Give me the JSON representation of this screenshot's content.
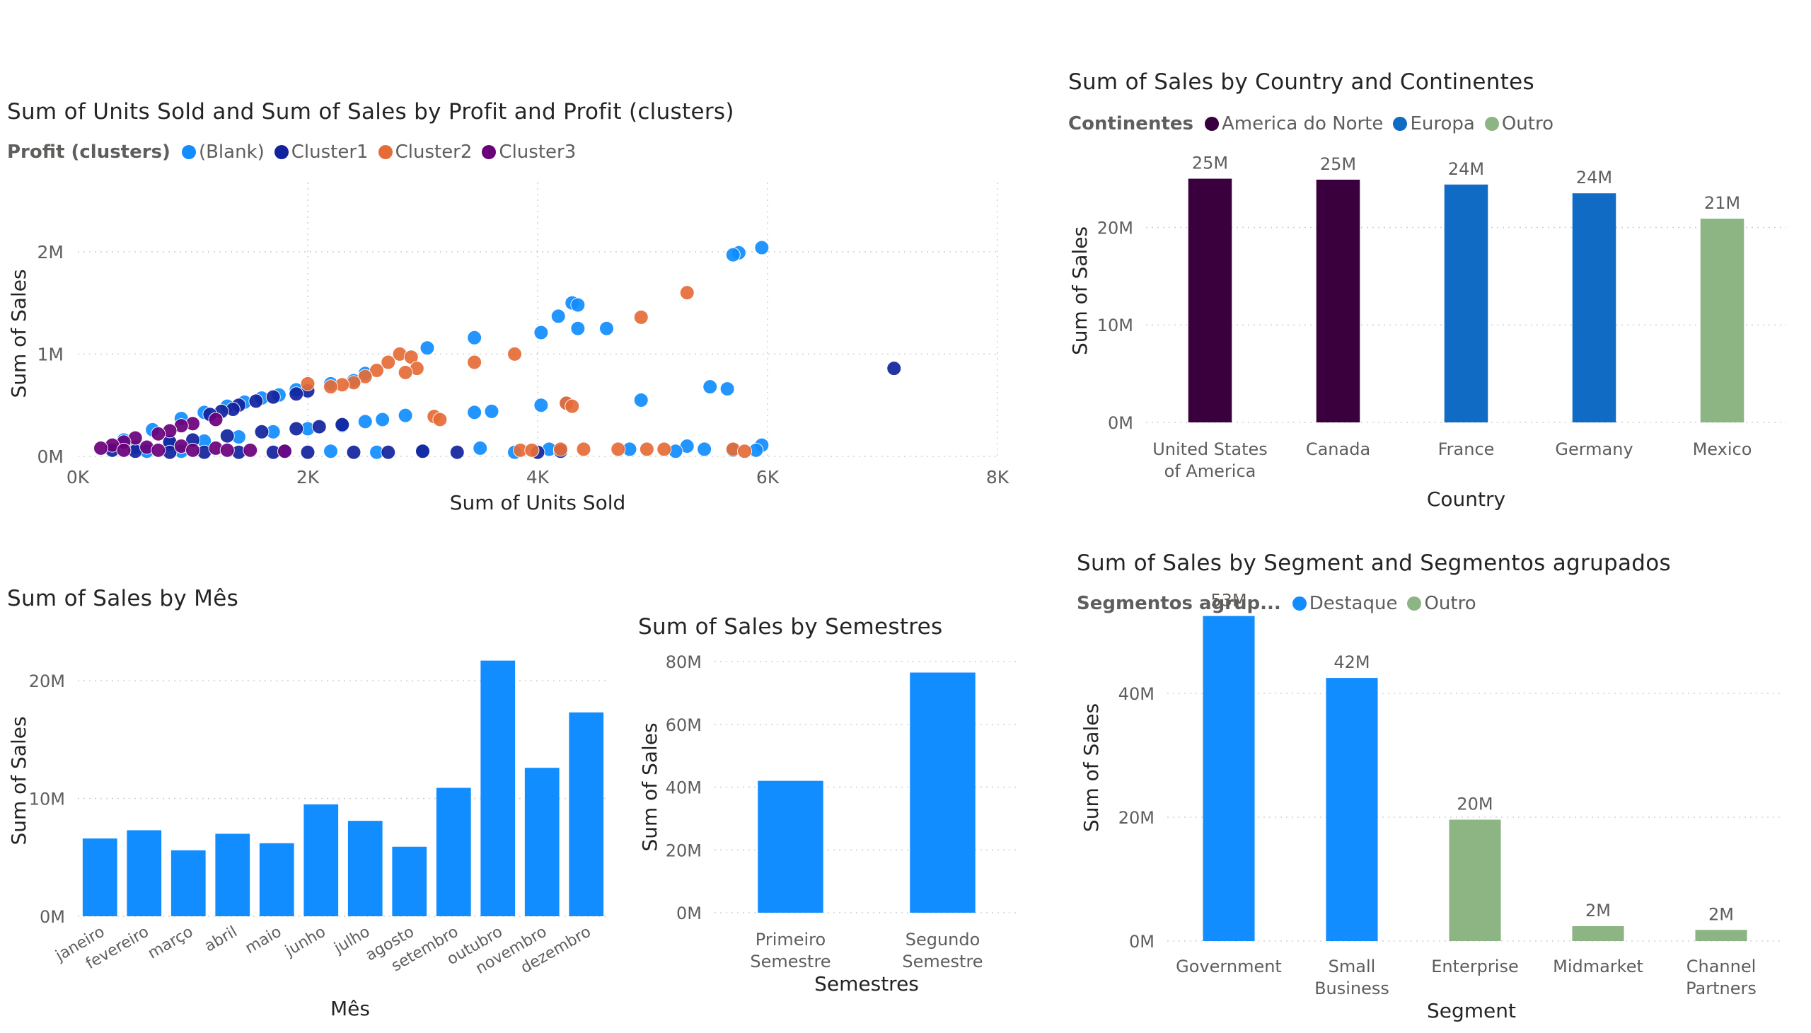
{
  "visuals": {
    "scatter": {
      "title": "Sum of Units Sold and Sum of Sales by Profit and Profit (clusters)",
      "legend_title": "Profit (clusters)",
      "legend": [
        {
          "label": "(Blank)",
          "color": "#118DFF"
        },
        {
          "label": "Cluster1",
          "color": "#12239E"
        },
        {
          "label": "Cluster2",
          "color": "#E66C37"
        },
        {
          "label": "Cluster3",
          "color": "#6B007B"
        }
      ]
    },
    "country": {
      "title": "Sum of Sales by Country and Continentes",
      "legend_title": "Continentes",
      "legend": [
        {
          "label": "America do Norte",
          "color": "#3A003E"
        },
        {
          "label": "Europa",
          "color": "#0F6BC4"
        },
        {
          "label": "Outro",
          "color": "#8DB584"
        }
      ]
    },
    "month": {
      "title": "Sum of Sales by Mês"
    },
    "semester": {
      "title": "Sum of Sales by Semestres"
    },
    "segment": {
      "title": "Sum of Sales by Segment and Segmentos agrupados",
      "legend_title": "Segmentos agrup...",
      "legend": [
        {
          "label": "Destaque",
          "color": "#118DFF"
        },
        {
          "label": "Outro",
          "color": "#8DB584"
        }
      ]
    }
  },
  "chart_data": [
    {
      "id": "scatter",
      "type": "scatter",
      "title": "Sum of Units Sold and Sum of Sales by Profit and Profit (clusters)",
      "xlabel": "Sum of Units Sold",
      "ylabel": "Sum of Sales",
      "xlim": [
        0,
        8000
      ],
      "ylim": [
        0,
        2400000
      ],
      "xticks": [
        0,
        2000,
        4000,
        6000,
        8000
      ],
      "xtick_labels": [
        "0K",
        "2K",
        "4K",
        "6K",
        "8K"
      ],
      "yticks": [
        0,
        1000000,
        2000000
      ],
      "ytick_labels": [
        "0M",
        "1M",
        "2M"
      ],
      "grid": true,
      "legend_position": "top-left",
      "series": [
        {
          "name": "(Blank)",
          "color": "#118DFF",
          "points": [
            [
              5950,
              2040000
            ],
            [
              5750,
              1990000
            ],
            [
              5700,
              1970000
            ],
            [
              4300,
              1500000
            ],
            [
              4350,
              1480000
            ],
            [
              4180,
              1370000
            ],
            [
              4030,
              1210000
            ],
            [
              3450,
              1160000
            ],
            [
              4350,
              1250000
            ],
            [
              4600,
              1250000
            ],
            [
              3040,
              1060000
            ],
            [
              5500,
              680000
            ],
            [
              5650,
              660000
            ],
            [
              4900,
              550000
            ],
            [
              3450,
              430000
            ],
            [
              3600,
              440000
            ],
            [
              4030,
              500000
            ],
            [
              4250,
              520000
            ],
            [
              2500,
              810000
            ],
            [
              2400,
              740000
            ],
            [
              2200,
              710000
            ],
            [
              1900,
              650000
            ],
            [
              1600,
              570000
            ],
            [
              1450,
              530000
            ],
            [
              1750,
              600000
            ],
            [
              1300,
              490000
            ],
            [
              1100,
              430000
            ],
            [
              900,
              370000
            ],
            [
              650,
              260000
            ],
            [
              400,
              160000
            ],
            [
              2850,
              400000
            ],
            [
              2650,
              360000
            ],
            [
              2500,
              340000
            ],
            [
              2300,
              300000
            ],
            [
              2000,
              270000
            ],
            [
              1700,
              240000
            ],
            [
              1400,
              190000
            ],
            [
              1100,
              150000
            ],
            [
              800,
              120000
            ],
            [
              500,
              90000
            ],
            [
              3500,
              80000
            ],
            [
              4100,
              70000
            ],
            [
              5300,
              100000
            ],
            [
              5950,
              110000
            ],
            [
              5450,
              70000
            ],
            [
              5700,
              60000
            ],
            [
              4800,
              70000
            ],
            [
              5900,
              60000
            ],
            [
              2200,
              50000
            ],
            [
              3000,
              50000
            ],
            [
              2600,
              40000
            ],
            [
              1800,
              50000
            ],
            [
              900,
              50000
            ],
            [
              600,
              50000
            ],
            [
              3800,
              40000
            ],
            [
              5200,
              50000
            ]
          ]
        },
        {
          "name": "Cluster1",
          "color": "#12239E",
          "points": [
            [
              7100,
              860000
            ],
            [
              2000,
              640000
            ],
            [
              1900,
              610000
            ],
            [
              1700,
              580000
            ],
            [
              1550,
              540000
            ],
            [
              1400,
              500000
            ],
            [
              1350,
              460000
            ],
            [
              1250,
              440000
            ],
            [
              1150,
              410000
            ],
            [
              2300,
              310000
            ],
            [
              2100,
              290000
            ],
            [
              1900,
              270000
            ],
            [
              1600,
              240000
            ],
            [
              1300,
              200000
            ],
            [
              1000,
              160000
            ],
            [
              800,
              140000
            ],
            [
              3000,
              50000
            ],
            [
              2700,
              40000
            ],
            [
              2400,
              40000
            ],
            [
              2000,
              40000
            ],
            [
              1700,
              40000
            ],
            [
              1400,
              40000
            ],
            [
              1100,
              40000
            ],
            [
              800,
              40000
            ],
            [
              500,
              50000
            ],
            [
              300,
              60000
            ],
            [
              3300,
              40000
            ],
            [
              4000,
              40000
            ],
            [
              4200,
              50000
            ]
          ]
        },
        {
          "name": "Cluster2",
          "color": "#E66C37",
          "points": [
            [
              5300,
              1600000
            ],
            [
              4900,
              1360000
            ],
            [
              3800,
              1000000
            ],
            [
              3450,
              920000
            ],
            [
              2800,
              1000000
            ],
            [
              2900,
              970000
            ],
            [
              2700,
              920000
            ],
            [
              2950,
              860000
            ],
            [
              2600,
              840000
            ],
            [
              2500,
              780000
            ],
            [
              2400,
              720000
            ],
            [
              2300,
              700000
            ],
            [
              2200,
              680000
            ],
            [
              2000,
              710000
            ],
            [
              2850,
              820000
            ],
            [
              4250,
              520000
            ],
            [
              4300,
              490000
            ],
            [
              3100,
              390000
            ],
            [
              3150,
              360000
            ],
            [
              4400,
              70000
            ],
            [
              4700,
              70000
            ],
            [
              4950,
              70000
            ],
            [
              5100,
              70000
            ],
            [
              5700,
              70000
            ],
            [
              5800,
              50000
            ],
            [
              3850,
              60000
            ],
            [
              3950,
              60000
            ],
            [
              4200,
              70000
            ]
          ]
        },
        {
          "name": "Cluster3",
          "color": "#6B007B",
          "points": [
            [
              1200,
              360000
            ],
            [
              1000,
              320000
            ],
            [
              900,
              300000
            ],
            [
              800,
              250000
            ],
            [
              700,
              220000
            ],
            [
              500,
              180000
            ],
            [
              400,
              140000
            ],
            [
              300,
              110000
            ],
            [
              200,
              80000
            ],
            [
              600,
              90000
            ],
            [
              900,
              100000
            ],
            [
              1200,
              80000
            ],
            [
              1500,
              60000
            ],
            [
              1800,
              50000
            ],
            [
              700,
              60000
            ],
            [
              400,
              60000
            ],
            [
              1000,
              60000
            ],
            [
              1300,
              60000
            ]
          ]
        }
      ]
    },
    {
      "id": "country",
      "type": "bar",
      "title": "Sum of Sales by Country and Continentes",
      "xlabel": "Country",
      "ylabel": "Sum of Sales",
      "categories": [
        "United States of America",
        "Canada",
        "France",
        "Germany",
        "Mexico"
      ],
      "values": [
        25000000,
        24900000,
        24400000,
        23500000,
        20900000
      ],
      "data_labels": [
        "25M",
        "25M",
        "24M",
        "24M",
        "21M"
      ],
      "groups": [
        "America do Norte",
        "America do Norte",
        "Europa",
        "Europa",
        "Outro"
      ],
      "colors": [
        "#3A003E",
        "#3A003E",
        "#0F6BC4",
        "#0F6BC4",
        "#8DB584"
      ],
      "ylim": [
        0,
        27000000
      ],
      "yticks": [
        0,
        10000000,
        20000000
      ],
      "ytick_labels": [
        "0M",
        "10M",
        "20M"
      ],
      "legend_position": "top-left"
    },
    {
      "id": "month",
      "type": "bar",
      "title": "Sum of Sales by Mês",
      "xlabel": "Mês",
      "ylabel": "Sum of Sales",
      "categories": [
        "janeiro",
        "fevereiro",
        "março",
        "abril",
        "maio",
        "junho",
        "julho",
        "agosto",
        "setembro",
        "outubro",
        "novembro",
        "dezembro"
      ],
      "values": [
        6600000,
        7300000,
        5600000,
        7000000,
        6200000,
        9500000,
        8100000,
        5900000,
        10900000,
        21700000,
        12600000,
        17300000
      ],
      "color": "#118DFF",
      "ylim": [
        0,
        23000000
      ],
      "yticks": [
        0,
        10000000,
        20000000
      ],
      "ytick_labels": [
        "0M",
        "10M",
        "20M"
      ]
    },
    {
      "id": "semester",
      "type": "bar",
      "title": "Sum of Sales by Semestres",
      "xlabel": "Semestres",
      "ylabel": "Sum of Sales",
      "categories": [
        "Primeiro Semestre",
        "Segundo Semestre"
      ],
      "values": [
        42000000,
        76500000
      ],
      "color": "#118DFF",
      "ylim": [
        0,
        80000000
      ],
      "yticks": [
        0,
        20000000,
        40000000,
        60000000,
        80000000
      ],
      "ytick_labels": [
        "0M",
        "20M",
        "40M",
        "60M",
        "80M"
      ]
    },
    {
      "id": "segment",
      "type": "bar",
      "title": "Sum of Sales by Segment and Segmentos agrupados",
      "xlabel": "Segment",
      "ylabel": "Sum of Sales",
      "categories": [
        "Government",
        "Small Business",
        "Enterprise",
        "Midmarket",
        "Channel Partners"
      ],
      "values": [
        52500000,
        42500000,
        19600000,
        2400000,
        1800000
      ],
      "data_labels": [
        "53M",
        "42M",
        "20M",
        "2M",
        "2M"
      ],
      "groups": [
        "Destaque",
        "Destaque",
        "Outro",
        "Outro",
        "Outro"
      ],
      "colors": [
        "#118DFF",
        "#118DFF",
        "#8DB584",
        "#8DB584",
        "#8DB584"
      ],
      "ylim": [
        0,
        56000000
      ],
      "yticks": [
        0,
        20000000,
        40000000
      ],
      "ytick_labels": [
        "0M",
        "20M",
        "40M"
      ],
      "legend_position": "top-left"
    }
  ]
}
